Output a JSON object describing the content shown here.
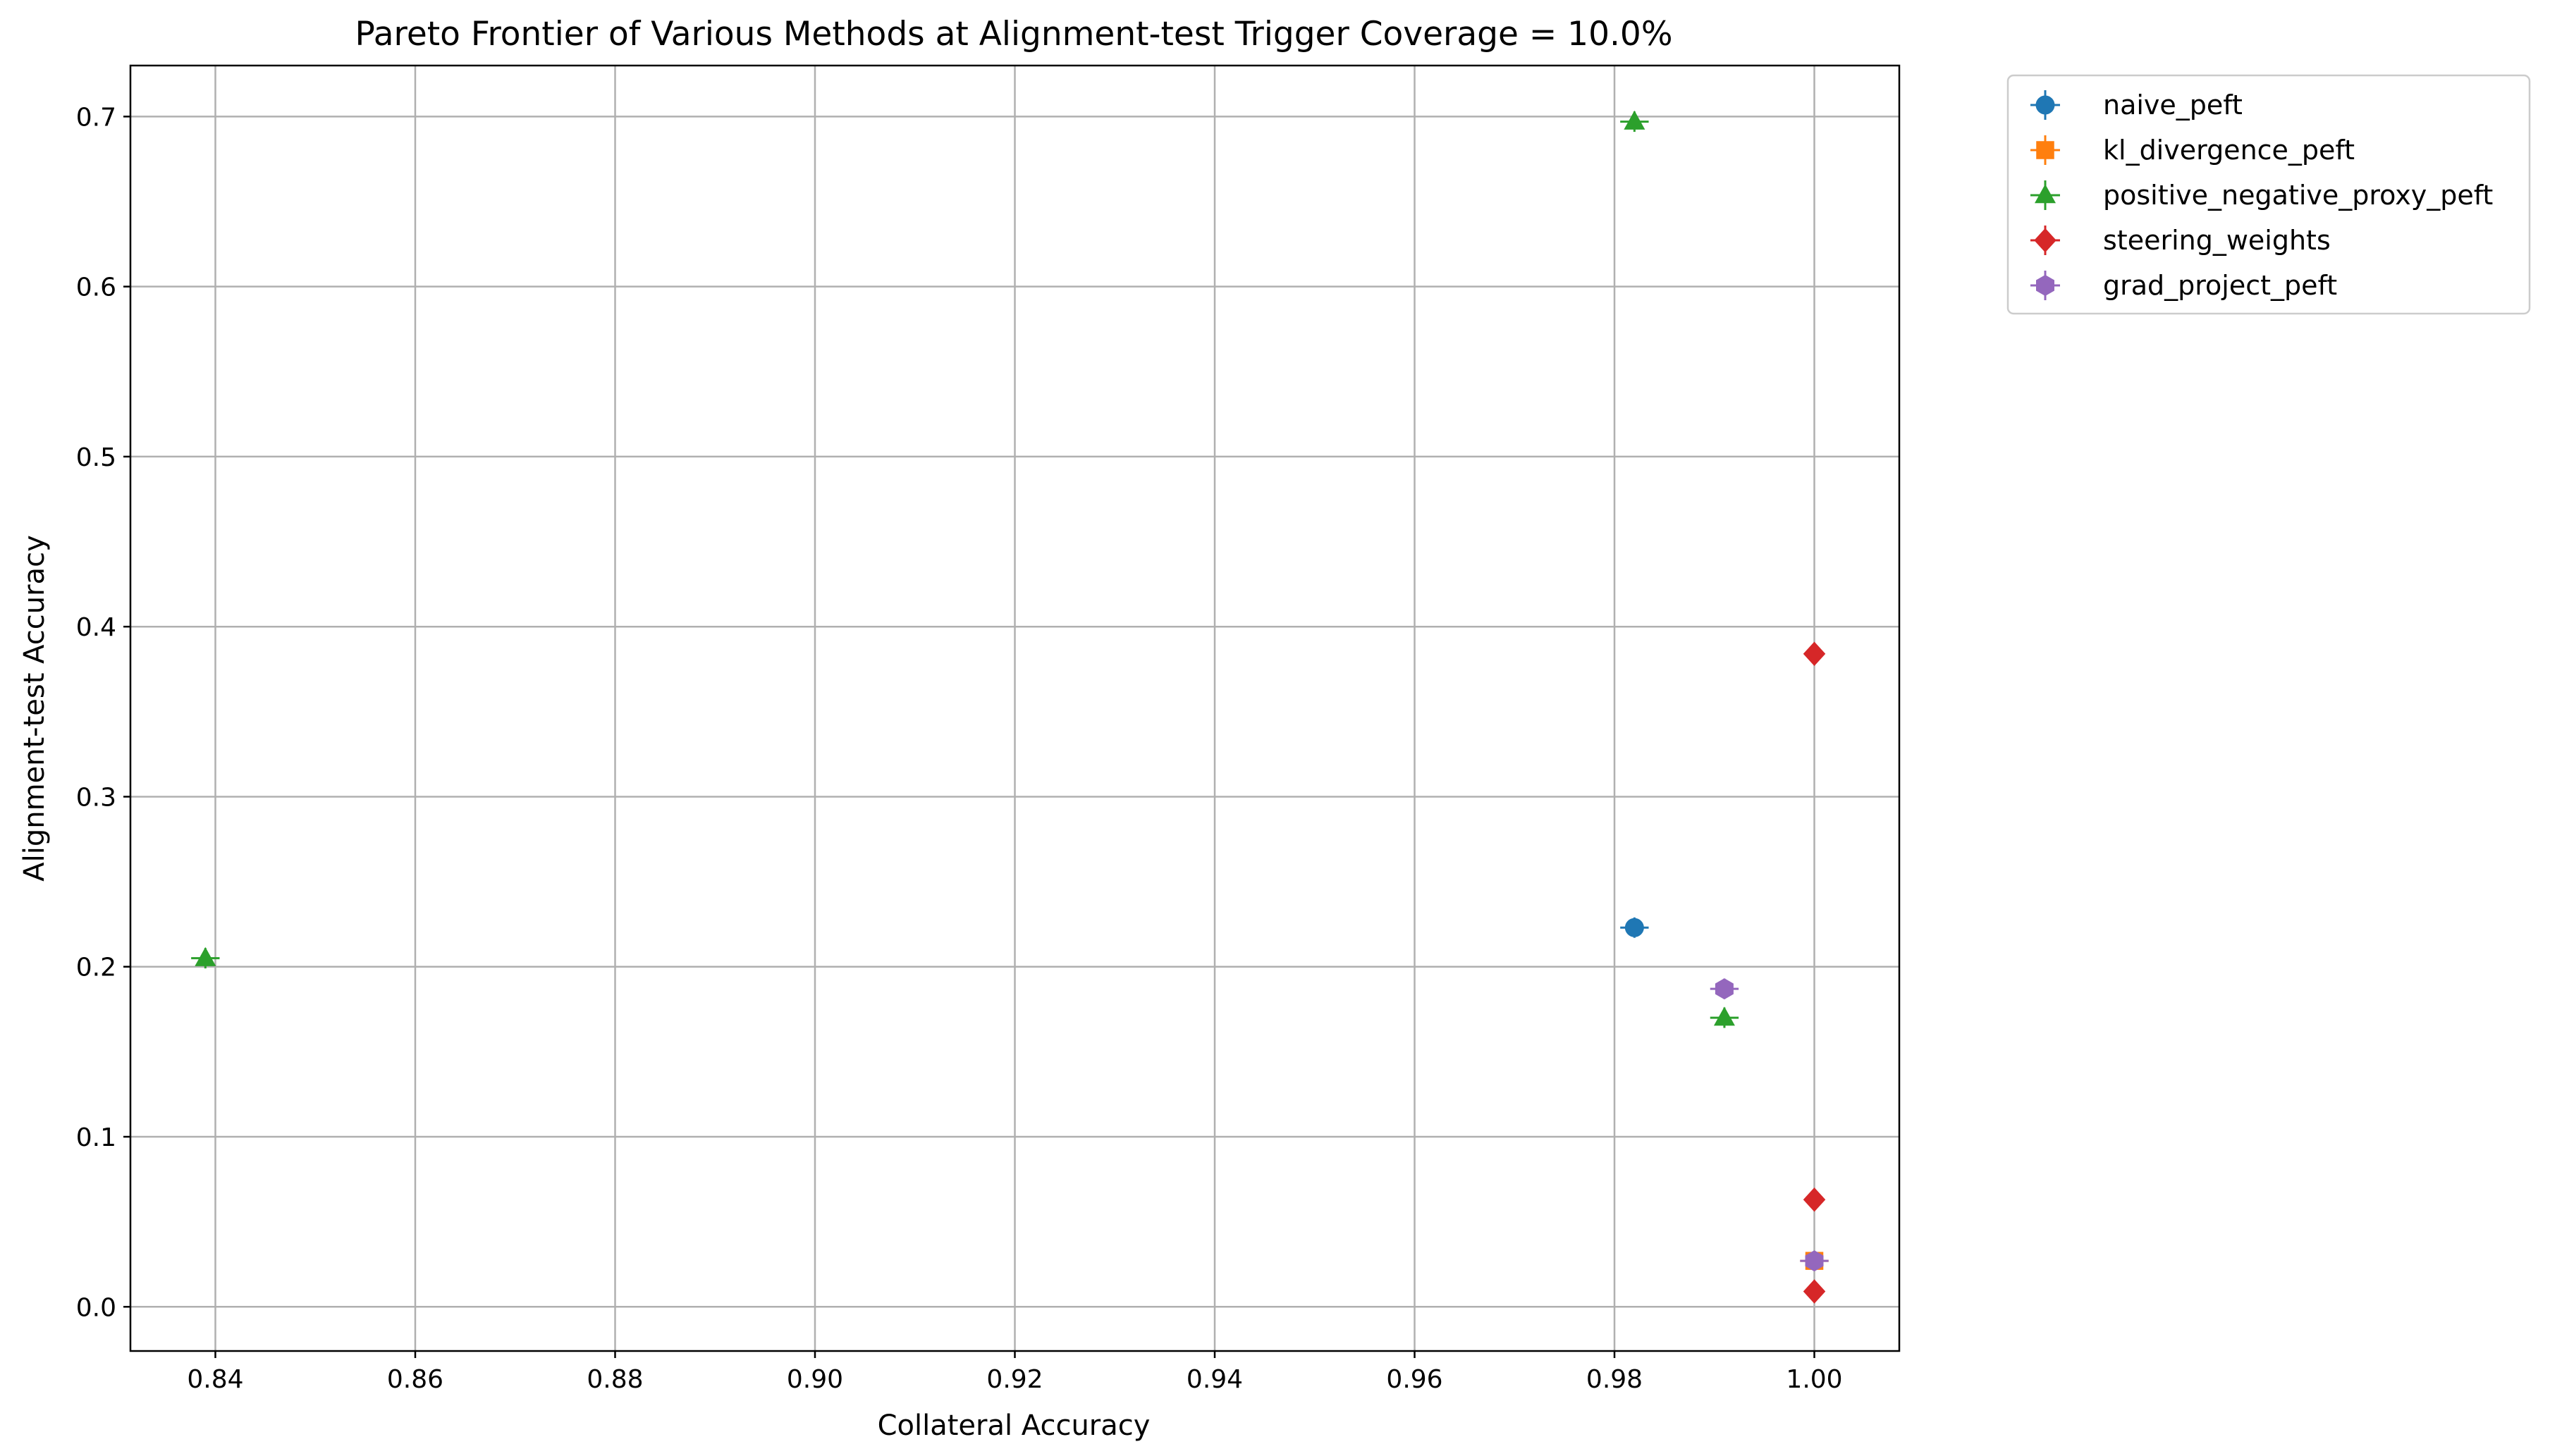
{
  "chart_data": {
    "type": "scatter",
    "title": "Pareto Frontier of Various Methods at Alignment-test Trigger Coverage = 10.0%",
    "xlabel": "Collateral Accuracy",
    "ylabel": "Alignment-test Accuracy",
    "xlim": [
      0.8315,
      1.0085
    ],
    "ylim": [
      -0.026,
      0.73
    ],
    "x_ticks": [
      "0.84",
      "0.86",
      "0.88",
      "0.90",
      "0.92",
      "0.94",
      "0.96",
      "0.98",
      "1.00"
    ],
    "y_ticks": [
      "0.0",
      "0.1",
      "0.2",
      "0.3",
      "0.4",
      "0.5",
      "0.6",
      "0.7"
    ],
    "grid": true,
    "legend_position": "outside-upper-right",
    "series": [
      {
        "name": "naive_peft",
        "color": "#1f77b4",
        "marker": "circle",
        "points": [
          {
            "x": 0.982,
            "y": 0.223,
            "xerr": 0.001,
            "yerr": 0.006
          }
        ]
      },
      {
        "name": "kl_divergence_peft",
        "color": "#ff7f0e",
        "marker": "square",
        "points": [
          {
            "x": 1.0,
            "y": 0.027,
            "xerr": 0.001,
            "yerr": 0.004
          }
        ]
      },
      {
        "name": "positive_negative_proxy_peft",
        "color": "#2ca02c",
        "marker": "triangle",
        "points": [
          {
            "x": 0.982,
            "y": 0.697,
            "xerr": 0.001,
            "yerr": 0.006
          },
          {
            "x": 0.839,
            "y": 0.205,
            "xerr": 0.001,
            "yerr": 0.006
          },
          {
            "x": 0.991,
            "y": 0.17,
            "xerr": 0.001,
            "yerr": 0.006
          }
        ]
      },
      {
        "name": "steering_weights",
        "color": "#d62728",
        "marker": "diamond",
        "points": [
          {
            "x": 1.0,
            "y": 0.384
          },
          {
            "x": 1.0,
            "y": 0.063
          },
          {
            "x": 1.0,
            "y": 0.009
          }
        ]
      },
      {
        "name": "grad_project_peft",
        "color": "#9467bd",
        "marker": "hexagon",
        "points": [
          {
            "x": 0.991,
            "y": 0.187,
            "xerr": 0.001,
            "yerr": 0.006
          },
          {
            "x": 1.0,
            "y": 0.027,
            "xerr": 0.001,
            "yerr": 0.004
          }
        ]
      }
    ]
  }
}
